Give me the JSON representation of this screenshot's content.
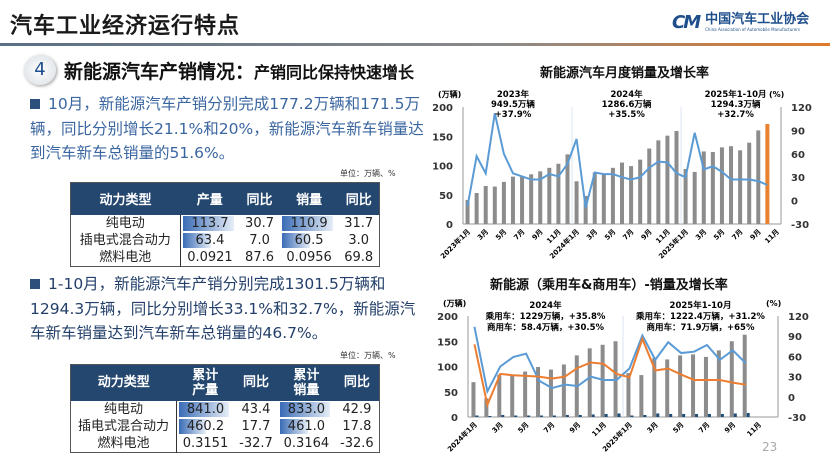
{
  "header": {
    "title": "汽车工业经济运行特点",
    "logo_cn": "中国汽车工业协会",
    "logo_en": "China Association of Automobile Manufacturers"
  },
  "section": {
    "number": "4",
    "title": "新能源汽车产销情况：",
    "subtitle": "产销同比保持快速增长"
  },
  "para1": "10月，新能源汽车产销分别完成177.2万辆和171.5万辆，同比分别增长21.1%和20%，新能源汽车新车销量达到汽车新车总销量的51.6%。",
  "para2": "1-10月，新能源汽车产销分别完成1301.5万辆和1294.3万辆，同比分别增长33.1%和32.7%，新能源汽车新车销量达到汽车新车总销量的46.7%。",
  "unit": "单位：万辆、%",
  "table1": {
    "headers": [
      "动力类型",
      "产量",
      "同比",
      "销量",
      "同比"
    ],
    "rows": [
      [
        "纯电动",
        "113.7",
        "30.7",
        "110.9",
        "31.7"
      ],
      [
        "插电式混合动力",
        "63.4",
        "7.0",
        "60.5",
        "3.0"
      ],
      [
        "燃料电池",
        "0.0921",
        "87.6",
        "0.0956",
        "69.8"
      ]
    ]
  },
  "table2": {
    "headers": [
      "动力类型",
      "累计\n产量",
      "同比",
      "累计\n销量",
      "同比"
    ],
    "rows": [
      [
        "纯电动",
        "841.0",
        "43.4",
        "833.0",
        "42.9"
      ],
      [
        "插电式混合动力",
        "460.2",
        "17.7",
        "461.0",
        "17.8"
      ],
      [
        "燃料电池",
        "0.3151",
        "-32.7",
        "0.3164",
        "-32.6"
      ]
    ]
  },
  "page_number": "23",
  "colors": {
    "bar": "#8c8c8c",
    "highlight_bar": "#e8822e",
    "line_blue": "#5b9bd5",
    "line_orange": "#ed7d31",
    "commercial_bar": "#1f4e79",
    "header_bg": "#24476f"
  },
  "chart_data": [
    {
      "type": "bar+line",
      "title": "新能源汽车月度销量及增长率",
      "ylabel_left": "(万辆)",
      "ylabel_right": "(%)",
      "ylim_left": [
        0,
        200
      ],
      "ylim_right": [
        -30,
        120
      ],
      "yticks_left": [
        0,
        50,
        100,
        150,
        200
      ],
      "yticks_right": [
        -30,
        0,
        30,
        60,
        90,
        120
      ],
      "xtick_labels": [
        "2023年1月",
        "3月",
        "5月",
        "7月",
        "9月",
        "11月",
        "2024年1月",
        "3月",
        "5月",
        "7月",
        "9月",
        "11月",
        "2025年1月",
        "3月",
        "5月",
        "7月",
        "9月",
        "11月"
      ],
      "annotations": [
        [
          "2023年",
          "949.5万辆",
          "+37.9%"
        ],
        [
          "2024年",
          "1286.6万辆",
          "+35.5%"
        ],
        [
          "2025年1-10月",
          "1294.3万辆",
          "+32.7%"
        ]
      ],
      "months": [
        "2023-01",
        "2023-02",
        "2023-03",
        "2023-04",
        "2023-05",
        "2023-06",
        "2023-07",
        "2023-08",
        "2023-09",
        "2023-10",
        "2023-11",
        "2023-12",
        "2024-01",
        "2024-02",
        "2024-03",
        "2024-04",
        "2024-05",
        "2024-06",
        "2024-07",
        "2024-08",
        "2024-09",
        "2024-10",
        "2024-11",
        "2024-12",
        "2025-01",
        "2025-02",
        "2025-03",
        "2025-04",
        "2025-05",
        "2025-06",
        "2025-07",
        "2025-08",
        "2025-09",
        "2025-10"
      ],
      "sales": [
        41,
        53,
        65,
        64,
        72,
        81,
        81,
        85,
        90,
        96,
        103,
        119,
        73,
        48,
        88,
        85,
        96,
        105,
        99,
        110,
        129,
        143,
        151,
        159,
        94,
        89,
        124,
        123,
        131,
        133,
        126,
        139,
        160,
        171
      ],
      "growth": [
        -7,
        57,
        35,
        112,
        60,
        35,
        31,
        27,
        27,
        34,
        31,
        47,
        79,
        -9,
        36,
        34,
        34,
        30,
        27,
        30,
        42,
        50,
        49,
        35,
        30,
        87,
        40,
        44,
        37,
        27,
        27,
        27,
        25,
        20
      ]
    },
    {
      "type": "bar+line",
      "title": "新能源（乘用车&商用车）-销量及增长率",
      "ylabel_left": "(万辆)",
      "ylabel_right": "(%)",
      "ylim_left": [
        0,
        200
      ],
      "ylim_right": [
        -30,
        120
      ],
      "yticks_left": [
        0,
        50,
        100,
        150,
        200
      ],
      "yticks_right": [
        -30,
        0,
        30,
        60,
        90,
        120
      ],
      "xtick_labels": [
        "2024年1月",
        "3月",
        "5月",
        "7月",
        "9月",
        "11月",
        "2025年1月",
        "3月",
        "5月",
        "7月",
        "9月",
        "11月"
      ],
      "annotations": [
        [
          "2024年",
          "乘用车：1229万辆，+35.8%",
          "商用车：58.4万辆，+30.5%"
        ],
        [
          "2025年1-10月",
          "乘用车：1222.4万辆，+31.2%",
          "商用车：71.9万辆，+65%"
        ]
      ],
      "months": [
        "2024-01",
        "2024-02",
        "2024-03",
        "2024-04",
        "2024-05",
        "2024-06",
        "2024-07",
        "2024-08",
        "2024-09",
        "2024-10",
        "2024-11",
        "2024-12",
        "2025-01",
        "2025-02",
        "2025-03",
        "2025-04",
        "2025-05",
        "2025-06",
        "2025-07",
        "2025-08",
        "2025-09",
        "2025-10"
      ],
      "passenger_sales": [
        69,
        37,
        84,
        83,
        90,
        99,
        94,
        104,
        122,
        136,
        143,
        150,
        87,
        83,
        117,
        114,
        122,
        124,
        119,
        132,
        150,
        163
      ],
      "commercial_sales": [
        3,
        2,
        4,
        3,
        3,
        3,
        3,
        4,
        4,
        5,
        6,
        7,
        3,
        4,
        7,
        6,
        6,
        6,
        6,
        6,
        7,
        8
      ],
      "growth_blue": [
        104,
        8,
        45,
        59,
        64,
        24,
        13,
        18,
        16,
        30,
        25,
        25,
        42,
        91,
        55,
        81,
        65,
        67,
        77,
        55,
        69,
        50
      ],
      "growth_orange": [
        78,
        -12,
        34,
        32,
        31,
        30,
        27,
        30,
        43,
        51,
        49,
        34,
        29,
        86,
        39,
        42,
        33,
        25,
        25,
        25,
        21,
        18
      ]
    }
  ]
}
